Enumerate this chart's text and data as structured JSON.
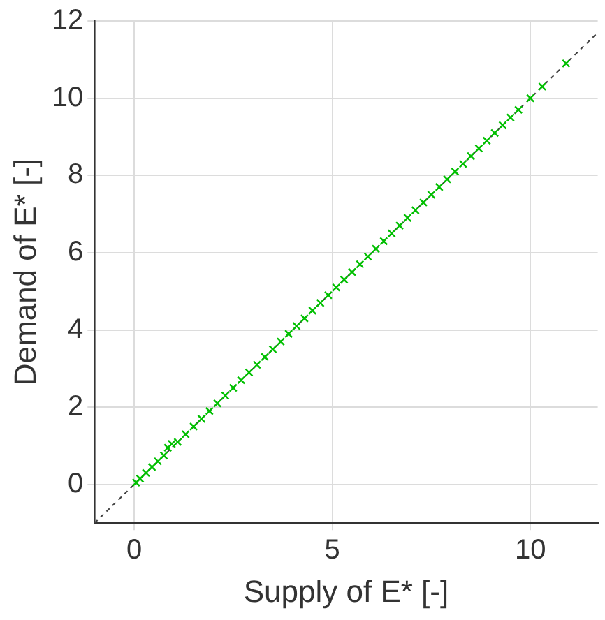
{
  "chart_data": {
    "type": "scatter",
    "xlabel": "Supply of E* [-]",
    "ylabel": "Demand of E* [-]",
    "xlim": [
      -1,
      11.7
    ],
    "ylim": [
      -1,
      12
    ],
    "xticks": [
      0,
      5,
      10
    ],
    "yticks": [
      0,
      2,
      4,
      6,
      8,
      10,
      12
    ],
    "grid": true,
    "legend": false,
    "marker": "cross",
    "series": [
      {
        "color": "#00c000",
        "x": [
          0.05,
          0.15,
          0.3,
          0.45,
          0.6,
          0.75,
          0.85,
          0.95,
          1.1,
          1.3,
          1.5,
          1.7,
          1.9,
          2.1,
          2.3,
          2.5,
          2.7,
          2.9,
          3.1,
          3.3,
          3.5,
          3.7,
          3.9,
          4.1,
          4.3,
          4.5,
          4.7,
          4.9,
          5.1,
          5.3,
          5.5,
          5.7,
          5.9,
          6.1,
          6.3,
          6.5,
          6.7,
          6.9,
          7.1,
          7.3,
          7.5,
          7.7,
          7.9,
          8.1,
          8.3,
          8.5,
          8.7,
          8.9,
          9.1,
          9.3,
          9.5,
          9.7,
          10.0,
          10.3,
          10.9
        ],
        "values": [
          0.05,
          0.15,
          0.3,
          0.45,
          0.6,
          0.75,
          0.95,
          1.05,
          1.1,
          1.3,
          1.5,
          1.7,
          1.9,
          2.1,
          2.3,
          2.5,
          2.7,
          2.9,
          3.1,
          3.3,
          3.5,
          3.7,
          3.9,
          4.1,
          4.3,
          4.5,
          4.7,
          4.9,
          5.1,
          5.3,
          5.5,
          5.7,
          5.9,
          6.1,
          6.3,
          6.5,
          6.7,
          6.9,
          7.1,
          7.3,
          7.5,
          7.7,
          7.9,
          8.1,
          8.3,
          8.5,
          8.7,
          8.9,
          9.1,
          9.3,
          9.5,
          9.7,
          10.0,
          10.3,
          10.9
        ]
      },
      {
        "type": "line",
        "color": "#404040",
        "line_style": "dashed",
        "marker": "none",
        "x": [
          -1,
          11.7
        ],
        "values": [
          -1,
          11.7
        ]
      }
    ]
  }
}
